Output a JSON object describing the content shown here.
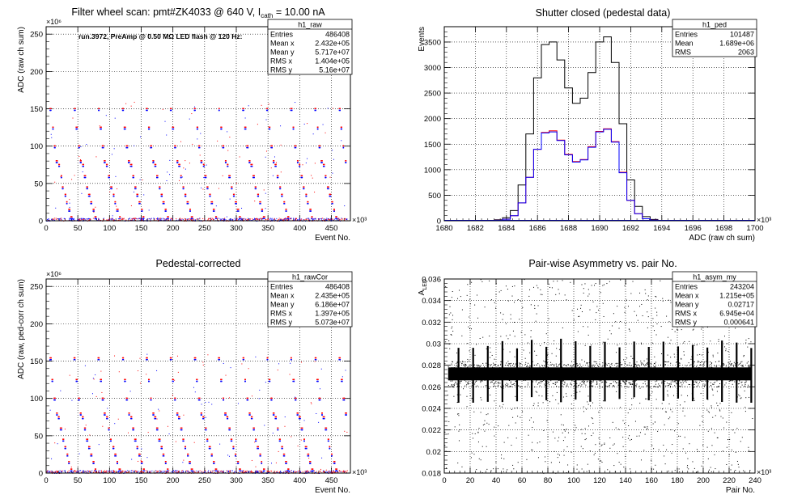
{
  "colors": {
    "black": "#000000",
    "red": "#ff0000",
    "blue": "#0000ff",
    "grid": "#000000"
  },
  "panels": [
    {
      "id": "raw",
      "title": "Filter wheel scan: pmt#ZK4033 @   640 V, I",
      "title_sub": "cath",
      "title_tail": " = 10.00 nA",
      "annotation": "run.3972, PreAmp @ 0.50 MΩ LED flash @  120 Hz:",
      "xlabel": "Event No.",
      "ylabel": "ADC (raw ch sum)",
      "xexp": "×10³",
      "yexp": "×10⁶",
      "stats": {
        "name": "h1_raw",
        "rows": [
          [
            "Entries",
            "486408"
          ],
          [
            "Mean x",
            "2.432e+05"
          ],
          [
            "Mean y",
            "5.717e+07"
          ],
          [
            "RMS x",
            "1.404e+05"
          ],
          [
            "RMS y",
            "5.16e+07"
          ]
        ]
      }
    },
    {
      "id": "ped",
      "title": "Shutter closed (pedestal data)",
      "xlabel": "ADC (raw ch sum)",
      "ylabel": "Events",
      "xexp": "×10³",
      "stats": {
        "name": "h1_ped",
        "rows": [
          [
            "Entries",
            "101487"
          ],
          [
            "Mean",
            "1.689e+06"
          ],
          [
            "RMS",
            "2063"
          ]
        ]
      }
    },
    {
      "id": "cor",
      "title": "Pedestal-corrected",
      "xlabel": "Event No.",
      "ylabel": "ADC (raw, ped-corr ch sum)",
      "xexp": "×10³",
      "yexp": "×10⁶",
      "stats": {
        "name": "h1_rawCor",
        "rows": [
          [
            "Entries",
            "486408"
          ],
          [
            "Mean x",
            "2.435e+05"
          ],
          [
            "Mean y",
            "6.186e+07"
          ],
          [
            "RMS x",
            "1.397e+05"
          ],
          [
            "RMS y",
            "5.073e+07"
          ]
        ]
      }
    },
    {
      "id": "asym",
      "title": "Pair-wise Asymmetry vs. pair No.",
      "xlabel": "Pair No.",
      "ylabel": "A",
      "ylabel_sub": "LED",
      "xexp": "×10³",
      "stats": {
        "name": "h1_asym_my",
        "rows": [
          [
            "Entries",
            "243204"
          ],
          [
            "Mean x",
            "1.215e+05"
          ],
          [
            "Mean y",
            "0.02717"
          ],
          [
            "RMS x",
            "6.945e+04"
          ],
          [
            "RMS y",
            "0.000641"
          ]
        ]
      }
    }
  ],
  "chart_data": [
    {
      "type": "scatter",
      "title": "Filter wheel scan: pmt#ZK4033 @   640 V, I cath = 10.00 nA",
      "xlabel": "Event No.",
      "ylabel": "ADC (raw ch sum)",
      "xlim": [
        0,
        480
      ],
      "ylim": [
        0,
        260
      ],
      "x_unit": "×10³",
      "y_unit": "×10⁶",
      "grid": true,
      "xticks": [
        0,
        50,
        100,
        150,
        200,
        250,
        300,
        350,
        400,
        450
      ],
      "yticks": [
        0,
        50,
        100,
        150,
        200,
        250
      ],
      "levels": [
        150,
        125,
        100,
        80,
        75,
        60,
        45,
        35,
        25,
        15,
        5
      ],
      "level_period": 38,
      "series": [
        {
          "color": "#ff0000",
          "values": "LED-on cluster levels"
        },
        {
          "color": "#0000ff",
          "values": "LED-on cluster levels"
        }
      ]
    },
    {
      "type": "line",
      "title": "Shutter closed (pedestal data)",
      "xlabel": "ADC (raw ch sum)",
      "ylabel": "Events",
      "xlim": [
        1680,
        1700
      ],
      "ylim": [
        0,
        3800
      ],
      "x_unit": "×10³",
      "grid": true,
      "xticks": [
        1680,
        1682,
        1684,
        1686,
        1688,
        1690,
        1692,
        1694,
        1696,
        1698,
        1700
      ],
      "yticks": [
        0,
        500,
        1000,
        1500,
        2000,
        2500,
        3000,
        3500
      ],
      "x": [
        1683.5,
        1684,
        1684.5,
        1685,
        1685.5,
        1686,
        1686.5,
        1687,
        1687.5,
        1688,
        1688.5,
        1689,
        1689.5,
        1690,
        1690.5,
        1691,
        1691.5,
        1692,
        1692.5,
        1693,
        1693.5,
        1694,
        1694.5
      ],
      "series": [
        {
          "color": "#000000",
          "values": [
            20,
            60,
            200,
            700,
            1700,
            2800,
            3450,
            3500,
            3150,
            2600,
            2300,
            2400,
            2900,
            3500,
            3600,
            3100,
            1900,
            800,
            280,
            80,
            25,
            8,
            0
          ]
        },
        {
          "color": "#ff0000",
          "values": [
            10,
            30,
            100,
            350,
            850,
            1400,
            1730,
            1760,
            1580,
            1300,
            1160,
            1200,
            1450,
            1750,
            1800,
            1550,
            950,
            400,
            140,
            40,
            12,
            4,
            0
          ]
        },
        {
          "color": "#0000ff",
          "values": [
            10,
            30,
            100,
            350,
            850,
            1400,
            1720,
            1740,
            1570,
            1290,
            1150,
            1190,
            1440,
            1740,
            1790,
            1540,
            940,
            400,
            140,
            40,
            12,
            4,
            0
          ]
        }
      ]
    },
    {
      "type": "scatter",
      "title": "Pedestal-corrected",
      "xlabel": "Event No.",
      "ylabel": "ADC (raw, ped-corr ch sum)",
      "xlim": [
        0,
        480
      ],
      "ylim": [
        0,
        260
      ],
      "x_unit": "×10³",
      "y_unit": "×10⁶",
      "grid": true,
      "xticks": [
        0,
        50,
        100,
        150,
        200,
        250,
        300,
        350,
        400,
        450
      ],
      "yticks": [
        0,
        50,
        100,
        150,
        200,
        250
      ],
      "levels": [
        154,
        125,
        100,
        80,
        75,
        60,
        45,
        35,
        25,
        15,
        5
      ],
      "level_period": 38,
      "series": [
        {
          "color": "#ff0000",
          "values": "LED-on cluster levels"
        },
        {
          "color": "#0000ff",
          "values": "LED-on cluster levels"
        }
      ]
    },
    {
      "type": "scatter",
      "title": "Pair-wise Asymmetry vs. pair No.",
      "xlabel": "Pair No.",
      "ylabel": "A LED",
      "xlim": [
        0,
        240
      ],
      "ylim": [
        0.018,
        0.036
      ],
      "x_unit": "×10³",
      "grid": true,
      "xticks": [
        0,
        20,
        40,
        60,
        80,
        100,
        120,
        140,
        160,
        180,
        200,
        220,
        240
      ],
      "yticks": [
        0.018,
        0.02,
        0.022,
        0.024,
        0.026,
        0.028,
        0.03,
        0.032,
        0.034,
        0.036
      ],
      "band_center": 0.0272,
      "band_halfwidth": 0.0006,
      "spike_period": 19,
      "spike_top": 0.0305,
      "spike_bottom": 0.0245,
      "series": [
        {
          "color": "#000000",
          "values": "pair asymmetry"
        }
      ]
    }
  ]
}
